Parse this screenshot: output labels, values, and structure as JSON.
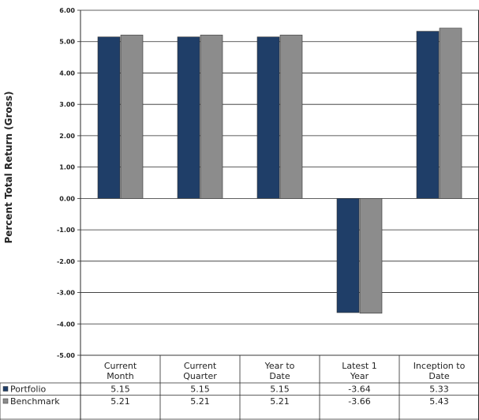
{
  "chart_data": {
    "type": "bar",
    "ylabel": "Percent Total Return (Gross)",
    "ylim": [
      -5.0,
      6.0
    ],
    "yticks": [
      "6.00",
      "5.00",
      "4.00",
      "3.00",
      "2.00",
      "1.00",
      "0.00",
      "-1.00",
      "-2.00",
      "-3.00",
      "-4.00",
      "-5.00"
    ],
    "categories": [
      [
        "Current",
        "Month"
      ],
      [
        "Current",
        "Quarter"
      ],
      [
        "Year to",
        "Date"
      ],
      [
        "Latest 1",
        "Year"
      ],
      [
        "Inception to",
        "Date"
      ]
    ],
    "series": [
      {
        "name": "Portfolio",
        "color": "#1f3e68",
        "values": [
          5.15,
          5.15,
          5.15,
          -3.64,
          5.33
        ],
        "labels": [
          "5.15",
          "5.15",
          "5.15",
          "-3.64",
          "5.33"
        ]
      },
      {
        "name": "Benchmark",
        "color": "#8c8c8c",
        "values": [
          5.21,
          5.21,
          5.21,
          -3.66,
          5.43
        ],
        "labels": [
          "5.21",
          "5.21",
          "5.21",
          "-3.66",
          "5.43"
        ]
      }
    ],
    "grid": true,
    "legend": "data-table"
  }
}
